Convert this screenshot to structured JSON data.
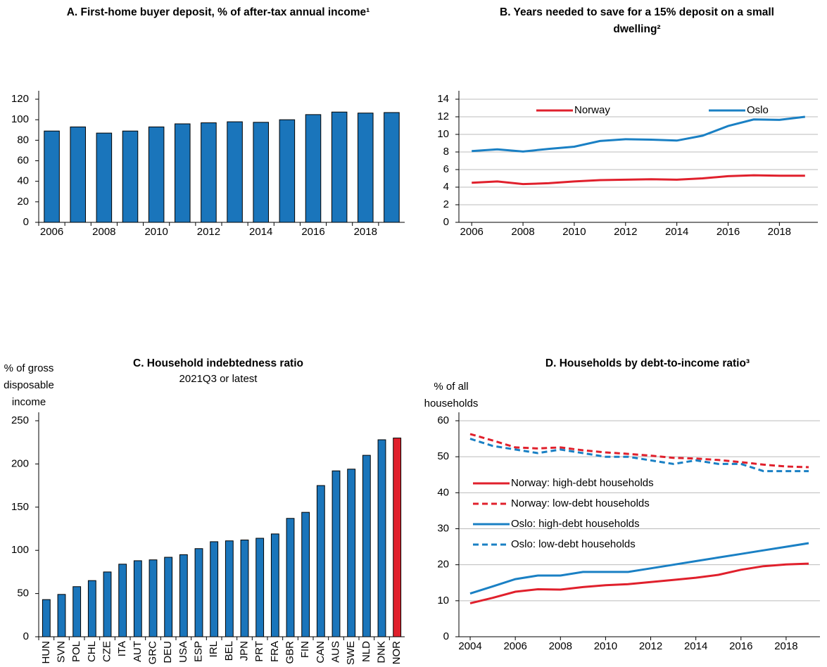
{
  "chart_data": [
    {
      "type": "bar",
      "title": "A. First-home buyer deposit, % of after-tax annual income¹",
      "categories": [
        2006,
        null,
        2008,
        null,
        2010,
        null,
        2012,
        null,
        2014,
        null,
        2016,
        null,
        2018,
        null
      ],
      "values": [
        89,
        93,
        87,
        89,
        93,
        96,
        97,
        98,
        97.5,
        100,
        105,
        107.5,
        106.5,
        107
      ],
      "color": "#1a75bb",
      "ylim": [
        0,
        120
      ],
      "yticks": [
        0,
        20,
        40,
        60,
        80,
        100,
        120
      ],
      "grid": false
    },
    {
      "type": "line",
      "title": "B. Years needed to save for a 15% deposit on a small dwelling²",
      "x": [
        2006,
        2007,
        2008,
        2009,
        2010,
        2011,
        2012,
        2013,
        2014,
        2015,
        2016,
        2017,
        2018,
        2019
      ],
      "series": [
        {
          "name": "Norway",
          "color": "#e0202c",
          "values": [
            4.5,
            4.65,
            4.35,
            4.45,
            4.65,
            4.8,
            4.85,
            4.9,
            4.85,
            5.0,
            5.25,
            5.35,
            5.3,
            5.3
          ]
        },
        {
          "name": "Oslo",
          "color": "#1a80c4",
          "values": [
            8.1,
            8.3,
            8.05,
            8.35,
            8.6,
            9.25,
            9.45,
            9.4,
            9.3,
            9.85,
            10.95,
            11.7,
            11.65,
            12.0
          ]
        }
      ],
      "xlim": [
        2005.5,
        2019.5
      ],
      "xticks": [
        2006,
        2008,
        2010,
        2012,
        2014,
        2016,
        2018
      ],
      "ylim": [
        0,
        14
      ],
      "yticks": [
        0,
        2,
        4,
        6,
        8,
        10,
        12,
        14
      ],
      "grid": true,
      "legend": "top"
    },
    {
      "type": "bar",
      "title": "C. Household indebtedness ratio",
      "subtitle": "2021Q3 or latest",
      "y_label": "% of gross disposable income",
      "categories": [
        "HUN",
        "SVN",
        "POL",
        "CHL",
        "CZE",
        "ITA",
        "AUT",
        "GRC",
        "DEU",
        "USA",
        "ESP",
        "IRL",
        "BEL",
        "JPN",
        "PRT",
        "FRA",
        "GBR",
        "FIN",
        "CAN",
        "AUS",
        "SWE",
        "NLD",
        "DNK",
        "NOR"
      ],
      "values": [
        43,
        49,
        58,
        65,
        75,
        84,
        88,
        89,
        92,
        95,
        102,
        110,
        111,
        112,
        114,
        119,
        137,
        144,
        175,
        192,
        194,
        210,
        228,
        230
      ],
      "color": "#1a75bb",
      "colors": [
        "#1a75bb",
        "#1a75bb",
        "#1a75bb",
        "#1a75bb",
        "#1a75bb",
        "#1a75bb",
        "#1a75bb",
        "#1a75bb",
        "#1a75bb",
        "#1a75bb",
        "#1a75bb",
        "#1a75bb",
        "#1a75bb",
        "#1a75bb",
        "#1a75bb",
        "#1a75bb",
        "#1a75bb",
        "#1a75bb",
        "#1a75bb",
        "#1a75bb",
        "#1a75bb",
        "#1a75bb",
        "#1a75bb",
        "#e0202c"
      ],
      "ylim": [
        0,
        250
      ],
      "yticks": [
        0,
        50,
        100,
        150,
        200,
        250
      ],
      "grid": false
    },
    {
      "type": "line",
      "title": "D. Households by debt-to-income ratio³",
      "y_label": "% of all households",
      "x": [
        2004,
        2005,
        2006,
        2007,
        2008,
        2009,
        2010,
        2011,
        2012,
        2013,
        2014,
        2015,
        2016,
        2017,
        2018,
        2019
      ],
      "series": [
        {
          "name": "Norway: high-debt households",
          "color": "#e0202c",
          "dashed": false,
          "values": [
            9.3,
            10.8,
            12.5,
            13.2,
            13.1,
            13.8,
            14.3,
            14.6,
            15.2,
            15.8,
            16.4,
            17.2,
            18.6,
            19.6,
            20.1,
            20.3
          ]
        },
        {
          "name": "Norway: low-debt households",
          "color": "#e0202c",
          "dashed": true,
          "values": [
            56.3,
            54.5,
            52.6,
            52.3,
            52.6,
            51.8,
            51.2,
            50.8,
            50.3,
            49.7,
            49.5,
            49.1,
            48.5,
            47.8,
            47.3,
            47.1
          ]
        },
        {
          "name": "Oslo: high-debt households",
          "color": "#1a80c4",
          "dashed": false,
          "values": [
            12,
            14,
            16,
            17,
            17,
            18,
            18,
            18,
            19,
            20,
            21,
            22,
            23,
            24,
            25,
            26
          ]
        },
        {
          "name": "Oslo: low-debt households",
          "color": "#1a80c4",
          "dashed": true,
          "values": [
            55,
            53,
            52,
            51,
            52,
            51,
            50,
            50,
            49,
            48,
            49,
            48,
            48,
            46,
            46,
            46
          ]
        }
      ],
      "xlim": [
        2003.5,
        2019.5
      ],
      "xticks": [
        2004,
        2006,
        2008,
        2010,
        2012,
        2014,
        2016,
        2018
      ],
      "ylim": [
        0,
        60
      ],
      "yticks": [
        0,
        10,
        20,
        30,
        40,
        50,
        60
      ],
      "grid": true,
      "legend": "left"
    }
  ]
}
